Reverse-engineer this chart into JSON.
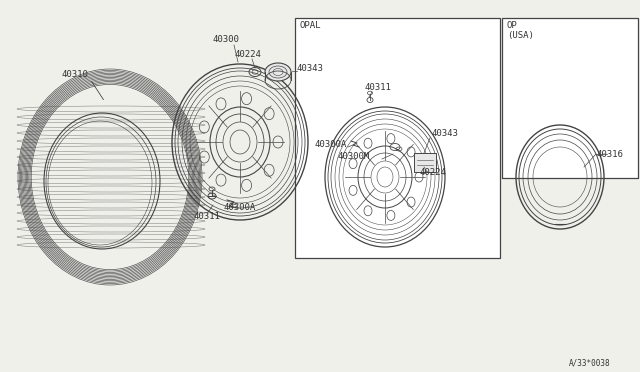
{
  "bg_color": "#f0f0eb",
  "line_color": "#444444",
  "text_color": "#333333",
  "diagram_code": "A/33*0038",
  "parts": {
    "tire_label": "40310",
    "wheel_label": "40300",
    "valve_main": "40311",
    "cap_main": "40300A",
    "hub_cap": "40343",
    "nut": "40224",
    "inset_valve": "40311",
    "inset_cap": "40300A",
    "inset_hub": "40343",
    "inset_nut": "40224",
    "inset_wheel": "40300M",
    "trim_ring": "40316"
  },
  "box1_label": "OPAL",
  "box2_label1": "OP",
  "box2_label2": "(USA)"
}
